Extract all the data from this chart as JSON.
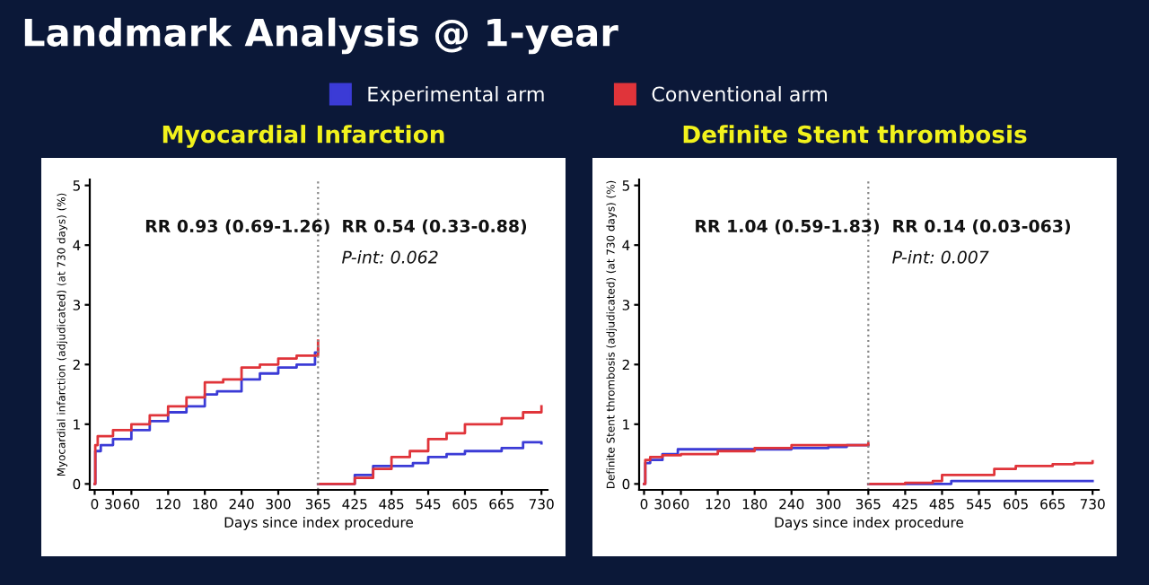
{
  "chart_data": [
    {
      "type": "step",
      "title": "Myocardial Infarction",
      "xlabel": "Days since index procedure",
      "ylabel": "Myocardial infarction (adjudicated) (at 730 days) (%)",
      "annotations": [
        "Landmark Analysis @ 1-year",
        "RR 0.93 (0.69-1.26)",
        "RR 0.54 (0.33-0.88)",
        "P-int: 0.062"
      ],
      "xlim": [
        -8,
        740
      ],
      "xticks": [
        0,
        30,
        60,
        120,
        180,
        240,
        300,
        365,
        425,
        485,
        545,
        605,
        665,
        730
      ],
      "ylim": [
        -0.1,
        5.1
      ],
      "yticks": [
        0,
        1,
        2,
        3,
        4,
        5
      ],
      "grid": false,
      "legend": "top",
      "marker": "none",
      "line_style": "solid",
      "ref_lines": [
        {
          "axis": "x",
          "value": 365,
          "color": "#888888",
          "line_style": "dotted"
        }
      ],
      "series": [
        {
          "name": "Experimental arm",
          "color": "#3b3bd6",
          "x": [
            0,
            1,
            10,
            30,
            60,
            90,
            120,
            150,
            180,
            200,
            240,
            270,
            300,
            330,
            360,
            365,
            null,
            365,
            425,
            455,
            485,
            520,
            545,
            575,
            605,
            665,
            700,
            730
          ],
          "values": [
            0,
            0.55,
            0.65,
            0.75,
            0.9,
            1.05,
            1.2,
            1.3,
            1.5,
            1.55,
            1.75,
            1.85,
            1.95,
            2.0,
            2.2,
            2.25,
            null,
            0,
            0.15,
            0.3,
            0.3,
            0.35,
            0.45,
            0.5,
            0.55,
            0.6,
            0.7,
            0.68
          ]
        },
        {
          "name": "Conventional arm",
          "color": "#e0343a",
          "x": [
            0,
            1,
            5,
            30,
            60,
            90,
            120,
            150,
            180,
            210,
            240,
            270,
            300,
            330,
            365,
            null,
            365,
            425,
            455,
            485,
            515,
            545,
            575,
            605,
            665,
            700,
            730
          ],
          "values": [
            0,
            0.65,
            0.8,
            0.9,
            1.0,
            1.15,
            1.3,
            1.45,
            1.7,
            1.75,
            1.95,
            2.0,
            2.1,
            2.15,
            2.4,
            null,
            0,
            0.1,
            0.25,
            0.45,
            0.55,
            0.75,
            0.85,
            1.0,
            1.1,
            1.2,
            1.3
          ]
        }
      ]
    },
    {
      "type": "step",
      "title": "Definite Stent thrombosis",
      "xlabel": "Days since index procedure",
      "ylabel": "Definite Stent thrombosis (adjudicated) (at 730 days) (%)",
      "annotations": [
        "RR 1.04 (0.59-1.83)",
        "RR 0.14 (0.03-063)",
        "P-int: 0.007"
      ],
      "xlim": [
        -8,
        740
      ],
      "xticks": [
        0,
        30,
        60,
        120,
        180,
        240,
        300,
        365,
        425,
        485,
        545,
        605,
        665,
        730
      ],
      "ylim": [
        -0.1,
        5.1
      ],
      "yticks": [
        0,
        1,
        2,
        3,
        4,
        5
      ],
      "grid": false,
      "marker": "none",
      "line_style": "solid",
      "ref_lines": [
        {
          "axis": "x",
          "value": 365,
          "color": "#888888",
          "line_style": "dotted"
        }
      ],
      "series": [
        {
          "color": "#3b3bd6",
          "x": [
            0,
            2,
            10,
            30,
            55,
            120,
            180,
            240,
            300,
            330,
            365,
            null,
            365,
            500,
            730
          ],
          "values": [
            0,
            0.35,
            0.4,
            0.5,
            0.58,
            0.58,
            0.58,
            0.6,
            0.62,
            0.65,
            0.65,
            null,
            0,
            0.05,
            0.05
          ]
        },
        {
          "color": "#e0343a",
          "x": [
            0,
            2,
            10,
            30,
            60,
            120,
            180,
            240,
            300,
            365,
            null,
            365,
            425,
            470,
            485,
            545,
            570,
            605,
            665,
            700,
            730
          ],
          "values": [
            0,
            0.4,
            0.45,
            0.48,
            0.5,
            0.55,
            0.6,
            0.65,
            0.65,
            0.68,
            null,
            0,
            0.02,
            0.05,
            0.15,
            0.15,
            0.25,
            0.3,
            0.33,
            0.35,
            0.38
          ]
        }
      ]
    }
  ]
}
